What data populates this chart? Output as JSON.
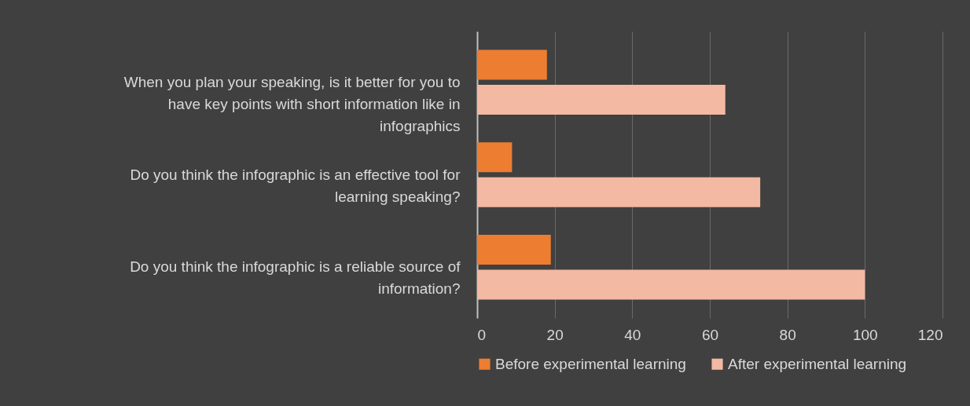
{
  "chart_data": {
    "type": "bar",
    "orientation": "horizontal",
    "categories": [
      "When you plan your speaking, is it better for you to have key points with short information like in infographics",
      "Do you think the infographic is an effective tool for learning speaking?",
      "Do you think the infographic is a reliable source of information?"
    ],
    "series": [
      {
        "name": "Before experimental learning",
        "color": "#ed7d31",
        "values": [
          18,
          9,
          19
        ]
      },
      {
        "name": "After experimental learning",
        "color": "#f4b9a3",
        "values": [
          64,
          73,
          100
        ]
      }
    ],
    "xlim": [
      0,
      120
    ],
    "xticks": [
      0,
      20,
      40,
      60,
      80,
      100,
      120
    ],
    "grid": "x",
    "legend": "bottom"
  }
}
